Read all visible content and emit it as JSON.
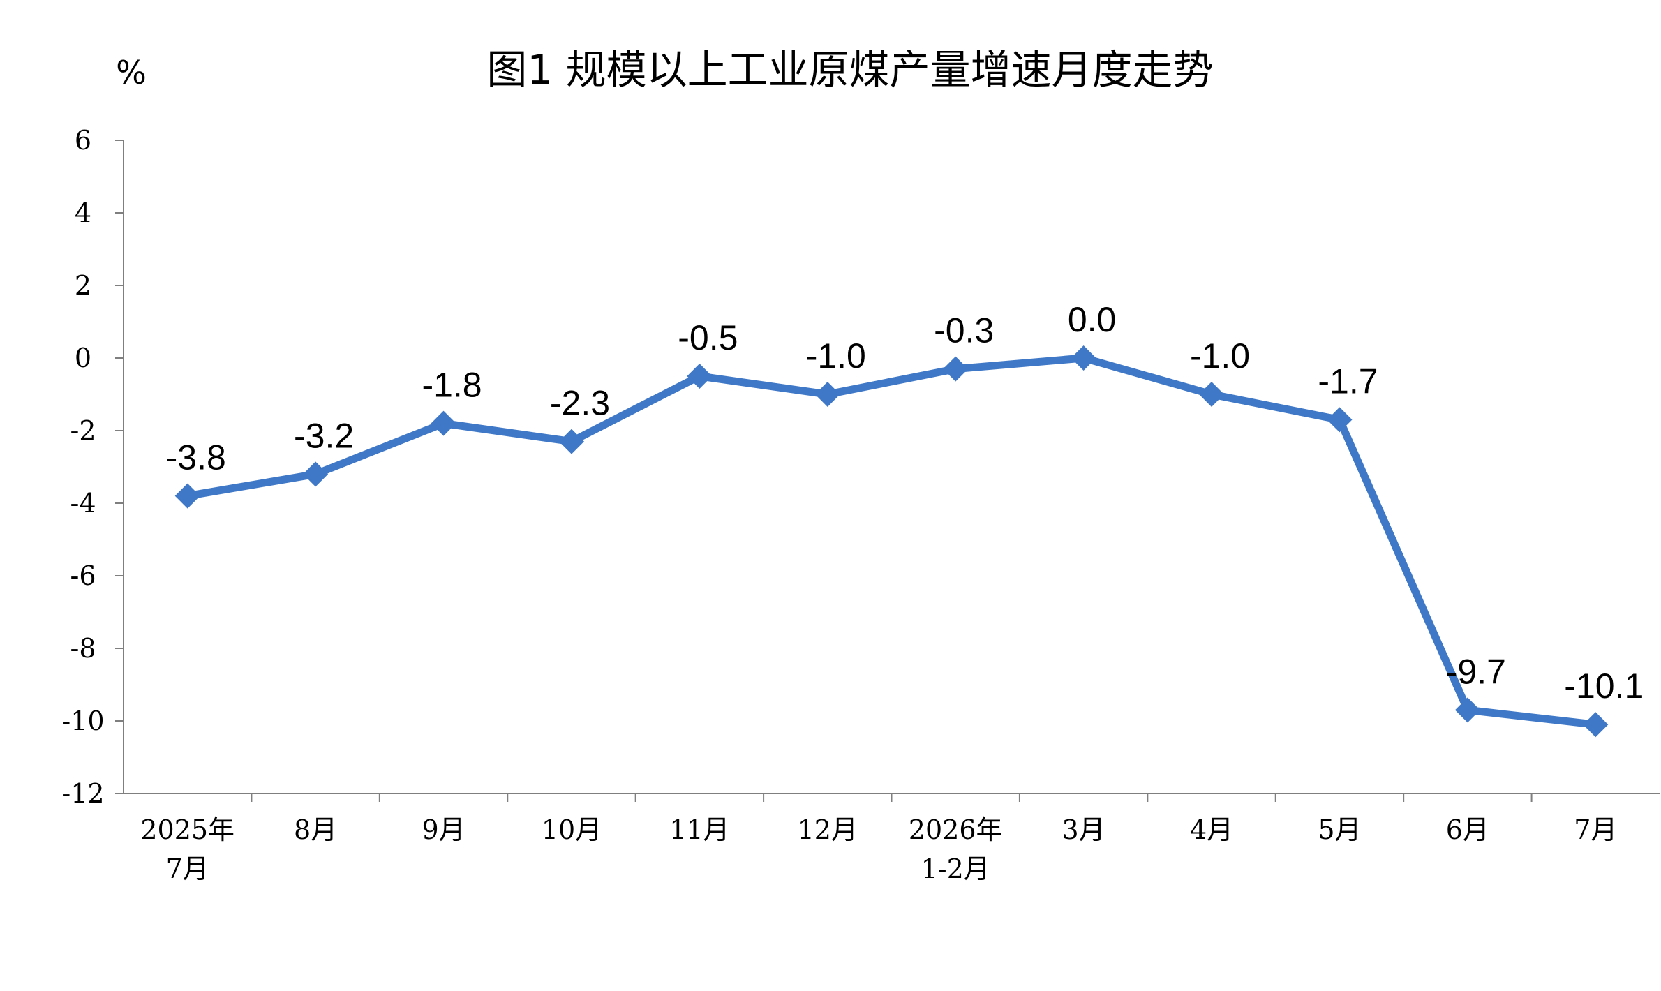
{
  "chart_data": {
    "type": "line",
    "title": "图1  规模以上工业原煤产量增速月度走势",
    "ylabel": "%",
    "xlabel": "",
    "ylim": [
      -12,
      6
    ],
    "yticks": [
      6,
      4,
      2,
      0,
      -2,
      -4,
      -6,
      -8,
      -10,
      -12
    ],
    "categories": [
      [
        "2025年",
        "7月"
      ],
      [
        "8月"
      ],
      [
        "9月"
      ],
      [
        "10月"
      ],
      [
        "11月"
      ],
      [
        "12月"
      ],
      [
        "2026年",
        "1-2月"
      ],
      [
        "3月"
      ],
      [
        "4月"
      ],
      [
        "5月"
      ],
      [
        "6月"
      ],
      [
        "7月"
      ]
    ],
    "series": [
      {
        "values": [
          -3.8,
          -3.2,
          -1.8,
          -2.3,
          -0.5,
          -1.0,
          -0.3,
          0.0,
          -1.0,
          -1.7,
          -9.7,
          -10.1
        ],
        "labels": [
          "-3.8",
          "-3.2",
          "-1.8",
          "-2.3",
          "-0.5",
          "-1.0",
          "-0.3",
          "0.0",
          "-1.0",
          "-1.7",
          "-9.7",
          "-10.1"
        ],
        "color": "#3f78c7",
        "marker": "diamond"
      }
    ],
    "grid": false,
    "legend": "none"
  }
}
